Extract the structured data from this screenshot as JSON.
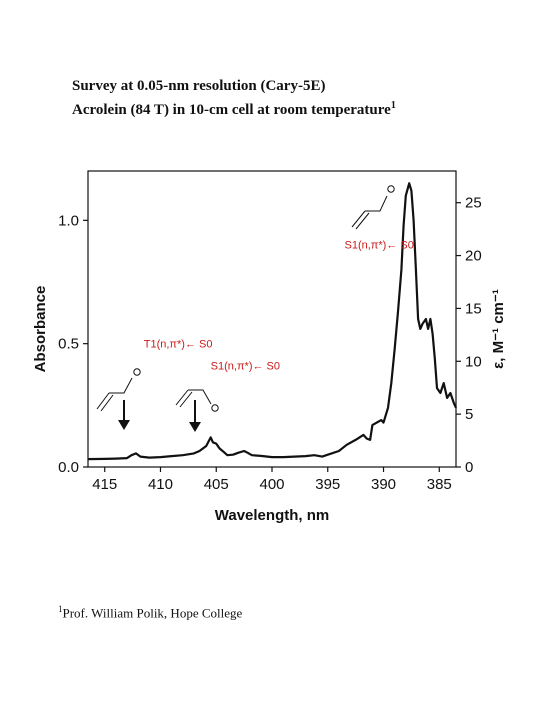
{
  "header": {
    "line1": "Survey at 0.05-nm resolution (Cary-5E)",
    "line2": "Acrolein (84 T) in 10-cm cell at room temperature",
    "line2_sup": "1"
  },
  "footnote": {
    "sup": "1",
    "text": "Prof. William Polik, Hope College"
  },
  "chart_data": {
    "type": "line",
    "xlabel": "Wavelength, nm",
    "ylabel": "Absorbance",
    "y2label": "ε, M⁻¹ cm⁻¹",
    "xlim": [
      416.5,
      383.5
    ],
    "ylim": [
      0,
      1.2
    ],
    "y2lim": [
      0,
      28
    ],
    "x_ticks": [
      "415",
      "410",
      "405",
      "400",
      "395",
      "390",
      "385"
    ],
    "y_ticks": [
      "0.0",
      "0.5",
      "1.0"
    ],
    "y2_ticks": [
      "0",
      "5",
      "10",
      "15",
      "20",
      "25"
    ],
    "series": [
      {
        "x": [
          416.5,
          415,
          414,
          413,
          412.6,
          412.2,
          411.8,
          411,
          410,
          409,
          408,
          407,
          406.5,
          405.9,
          405.5,
          405.3,
          405.0,
          404.7,
          404.3,
          404.0,
          403.5,
          403.0,
          402.5,
          402.2,
          401.8,
          401,
          400,
          399,
          398,
          397,
          396.2,
          395.5,
          395,
          394,
          393.3,
          392.5,
          391.8,
          391.5,
          391.2,
          391.0,
          390.6,
          390.2,
          390.0,
          389.6,
          389.3,
          389.0,
          388.7,
          388.4,
          388.2,
          388.0,
          387.7,
          387.5,
          387.3,
          387.1,
          386.9,
          386.7,
          386.5,
          386.2,
          386.0,
          385.8,
          385.6,
          385.4,
          385.2,
          384.9,
          384.6,
          384.3,
          384.0,
          383.7,
          383.5
        ],
        "values": [
          0.032,
          0.033,
          0.034,
          0.036,
          0.048,
          0.055,
          0.042,
          0.038,
          0.04,
          0.044,
          0.048,
          0.055,
          0.065,
          0.085,
          0.12,
          0.1,
          0.095,
          0.075,
          0.06,
          0.048,
          0.05,
          0.058,
          0.065,
          0.058,
          0.048,
          0.045,
          0.04,
          0.04,
          0.042,
          0.044,
          0.048,
          0.042,
          0.05,
          0.065,
          0.09,
          0.11,
          0.13,
          0.115,
          0.11,
          0.17,
          0.18,
          0.19,
          0.18,
          0.24,
          0.34,
          0.48,
          0.63,
          0.8,
          0.98,
          1.1,
          1.15,
          1.12,
          1.0,
          0.8,
          0.6,
          0.56,
          0.58,
          0.6,
          0.56,
          0.6,
          0.54,
          0.44,
          0.32,
          0.3,
          0.34,
          0.28,
          0.3,
          0.26,
          0.24
        ]
      }
    ],
    "annotations": [
      {
        "text": "S1(n,π*)← S0",
        "x": 393.5,
        "y": 0.885
      },
      {
        "text": "T1(n,π*)← S0",
        "x": 411.5,
        "y": 0.485
      },
      {
        "text": "S1(n,π*)← S0",
        "x": 405.5,
        "y": 0.395
      }
    ]
  }
}
